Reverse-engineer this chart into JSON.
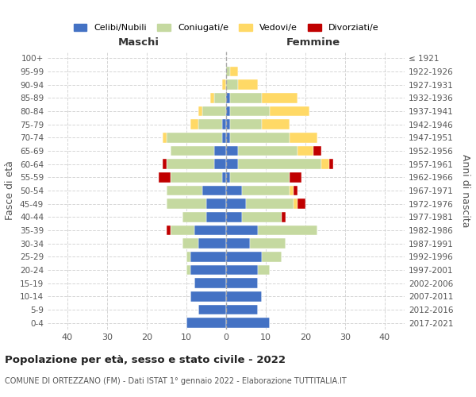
{
  "age_groups": [
    "0-4",
    "5-9",
    "10-14",
    "15-19",
    "20-24",
    "25-29",
    "30-34",
    "35-39",
    "40-44",
    "45-49",
    "50-54",
    "55-59",
    "60-64",
    "65-69",
    "70-74",
    "75-79",
    "80-84",
    "85-89",
    "90-94",
    "95-99",
    "100+"
  ],
  "birth_years": [
    "2017-2021",
    "2012-2016",
    "2007-2011",
    "2002-2006",
    "1997-2001",
    "1992-1996",
    "1987-1991",
    "1982-1986",
    "1977-1981",
    "1972-1976",
    "1967-1971",
    "1962-1966",
    "1957-1961",
    "1952-1956",
    "1947-1951",
    "1942-1946",
    "1937-1941",
    "1932-1936",
    "1927-1931",
    "1922-1926",
    "≤ 1921"
  ],
  "colors": {
    "celibi": "#4472C4",
    "coniugati": "#c5d9a0",
    "vedovi": "#FFD966",
    "divorziati": "#C00000"
  },
  "male": {
    "celibi": [
      10,
      7,
      9,
      8,
      9,
      9,
      7,
      8,
      5,
      5,
      6,
      1,
      3,
      3,
      1,
      1,
      0,
      0,
      0,
      0,
      0
    ],
    "coniugati": [
      0,
      0,
      0,
      0,
      1,
      1,
      4,
      6,
      6,
      10,
      9,
      13,
      12,
      11,
      14,
      6,
      6,
      3,
      0,
      0,
      0
    ],
    "vedovi": [
      0,
      0,
      0,
      0,
      0,
      0,
      0,
      0,
      0,
      0,
      0,
      0,
      0,
      0,
      1,
      2,
      1,
      1,
      1,
      0,
      0
    ],
    "divorziati": [
      0,
      0,
      0,
      0,
      0,
      0,
      0,
      1,
      0,
      0,
      0,
      3,
      1,
      0,
      0,
      0,
      0,
      0,
      0,
      0,
      0
    ]
  },
  "female": {
    "celibi": [
      11,
      8,
      9,
      8,
      8,
      9,
      6,
      8,
      4,
      5,
      4,
      1,
      3,
      3,
      1,
      1,
      1,
      1,
      0,
      0,
      0
    ],
    "coniugati": [
      0,
      0,
      0,
      0,
      3,
      5,
      9,
      15,
      10,
      12,
      12,
      15,
      21,
      15,
      15,
      8,
      10,
      8,
      3,
      1,
      0
    ],
    "vedovi": [
      0,
      0,
      0,
      0,
      0,
      0,
      0,
      0,
      0,
      1,
      1,
      0,
      2,
      4,
      7,
      7,
      10,
      9,
      5,
      2,
      0
    ],
    "divorziati": [
      0,
      0,
      0,
      0,
      0,
      0,
      0,
      0,
      1,
      2,
      1,
      3,
      1,
      2,
      0,
      0,
      0,
      0,
      0,
      0,
      0
    ]
  },
  "title": "Popolazione per età, sesso e stato civile - 2022",
  "subtitle": "COMUNE DI ORTEZZANO (FM) - Dati ISTAT 1° gennaio 2022 - Elaborazione TUTTITALIA.IT",
  "xlabel_left": "Maschi",
  "xlabel_right": "Femmine",
  "ylabel_left": "Fasce di età",
  "ylabel_right": "Anni di nascita",
  "xlim": 45,
  "legend_labels": [
    "Celibi/Nubili",
    "Coniugati/e",
    "Vedovi/e",
    "Divorziati/e"
  ],
  "background_color": "#ffffff",
  "grid_color": "#cccccc"
}
